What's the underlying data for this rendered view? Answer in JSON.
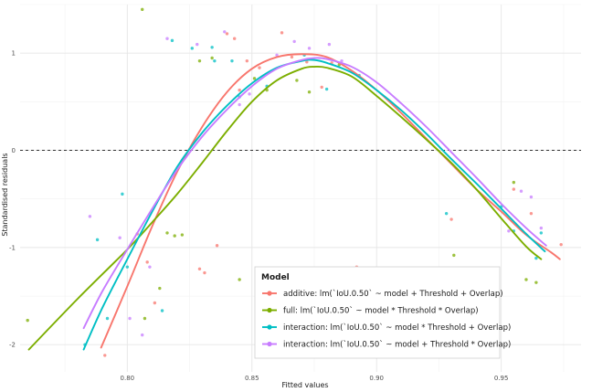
{
  "chart_data": {
    "type": "scatter",
    "xlabel": "Fitted values",
    "ylabel": "Standardised residuals",
    "xlim": [
      0.757,
      0.982
    ],
    "ylim": [
      -2.28,
      1.5
    ],
    "x_ticks": [
      0.8,
      0.85,
      0.9,
      0.95
    ],
    "x_tick_labels": [
      "0.80",
      "0.85",
      "0.90",
      "0.95"
    ],
    "y_ticks": [
      1,
      0,
      -1,
      -2
    ],
    "y_tick_labels": [
      "1",
      "0",
      "-1",
      "-2"
    ],
    "x_minor_ticks": [
      0.775,
      0.825,
      0.875,
      0.925,
      0.975
    ],
    "y_minor_ticks": [
      1.5,
      0.5,
      -0.5,
      -1.5
    ],
    "reference_line": 0,
    "grid": true,
    "legend": {
      "title": "Model",
      "position": "bottom-center"
    },
    "series": [
      {
        "name": "additive: lm(`IoU.0.50` ~ model + Threshold + Overlap)",
        "color": "#F8766D",
        "curve": [
          [
            0.7895,
            -2.03
          ],
          [
            0.8,
            -1.4
          ],
          [
            0.81,
            -0.78
          ],
          [
            0.82,
            -0.22
          ],
          [
            0.83,
            0.24
          ],
          [
            0.84,
            0.6
          ],
          [
            0.85,
            0.84
          ],
          [
            0.86,
            0.96
          ],
          [
            0.87,
            0.99
          ],
          [
            0.88,
            0.96
          ],
          [
            0.89,
            0.82
          ],
          [
            0.9,
            0.62
          ],
          [
            0.91,
            0.38
          ],
          [
            0.92,
            0.12
          ],
          [
            0.93,
            -0.14
          ],
          [
            0.94,
            -0.4
          ],
          [
            0.95,
            -0.63
          ],
          [
            0.96,
            -0.87
          ],
          [
            0.97,
            -1.05
          ],
          [
            0.9735,
            -1.12
          ]
        ],
        "points": [
          [
            0.791,
            -2.11
          ],
          [
            0.804,
            -0.86
          ],
          [
            0.808,
            -1.15
          ],
          [
            0.811,
            -1.57
          ],
          [
            0.829,
            -1.22
          ],
          [
            0.831,
            -1.26
          ],
          [
            0.836,
            -0.98
          ],
          [
            0.84,
            1.2
          ],
          [
            0.843,
            1.15
          ],
          [
            0.845,
            0.62
          ],
          [
            0.848,
            0.92
          ],
          [
            0.853,
            0.85
          ],
          [
            0.862,
            1.21
          ],
          [
            0.866,
            0.96
          ],
          [
            0.872,
            0.91
          ],
          [
            0.878,
            0.65
          ],
          [
            0.882,
            0.9
          ],
          [
            0.892,
            -1.2
          ],
          [
            0.93,
            -0.71
          ],
          [
            0.955,
            -0.4
          ],
          [
            0.962,
            -0.65
          ],
          [
            0.974,
            -0.97
          ]
        ]
      },
      {
        "name": "full: lm(`IoU.0.50` ~ model * Threshold * Overlap)",
        "color": "#7CAE00",
        "curve": [
          [
            0.7605,
            -2.05
          ],
          [
            0.78,
            -1.53
          ],
          [
            0.8,
            -1.02
          ],
          [
            0.81,
            -0.74
          ],
          [
            0.82,
            -0.45
          ],
          [
            0.83,
            -0.13
          ],
          [
            0.84,
            0.2
          ],
          [
            0.85,
            0.5
          ],
          [
            0.86,
            0.72
          ],
          [
            0.87,
            0.84
          ],
          [
            0.875,
            0.86
          ],
          [
            0.88,
            0.85
          ],
          [
            0.89,
            0.76
          ],
          [
            0.9,
            0.56
          ],
          [
            0.91,
            0.34
          ],
          [
            0.92,
            0.11
          ],
          [
            0.93,
            -0.13
          ],
          [
            0.94,
            -0.4
          ],
          [
            0.95,
            -0.7
          ],
          [
            0.96,
            -0.99
          ],
          [
            0.966,
            -1.12
          ]
        ],
        "points": [
          [
            0.76,
            -1.75
          ],
          [
            0.806,
            1.45
          ],
          [
            0.807,
            -1.73
          ],
          [
            0.813,
            -1.42
          ],
          [
            0.816,
            -0.85
          ],
          [
            0.819,
            -0.88
          ],
          [
            0.822,
            -0.87
          ],
          [
            0.829,
            0.92
          ],
          [
            0.834,
            0.95
          ],
          [
            0.845,
            -1.33
          ],
          [
            0.851,
            0.74
          ],
          [
            0.856,
            0.62
          ],
          [
            0.868,
            0.72
          ],
          [
            0.873,
            0.6
          ],
          [
            0.885,
            0.88
          ],
          [
            0.931,
            -1.08
          ],
          [
            0.955,
            -0.33
          ],
          [
            0.96,
            -1.33
          ],
          [
            0.964,
            -1.36
          ]
        ]
      },
      {
        "name": "interaction: lm(`IoU.0.50` ~ model * Threshold + Overlap)",
        "color": "#00BFC4",
        "curve": [
          [
            0.7825,
            -2.05
          ],
          [
            0.79,
            -1.62
          ],
          [
            0.8,
            -1.12
          ],
          [
            0.81,
            -0.63
          ],
          [
            0.82,
            -0.17
          ],
          [
            0.83,
            0.18
          ],
          [
            0.84,
            0.46
          ],
          [
            0.85,
            0.69
          ],
          [
            0.86,
            0.85
          ],
          [
            0.87,
            0.92
          ],
          [
            0.875,
            0.93
          ],
          [
            0.88,
            0.9
          ],
          [
            0.89,
            0.8
          ],
          [
            0.9,
            0.62
          ],
          [
            0.91,
            0.41
          ],
          [
            0.92,
            0.17
          ],
          [
            0.93,
            -0.09
          ],
          [
            0.94,
            -0.34
          ],
          [
            0.95,
            -0.6
          ],
          [
            0.96,
            -0.86
          ],
          [
            0.9675,
            -1.04
          ]
        ],
        "points": [
          [
            0.783,
            -2.0
          ],
          [
            0.788,
            -0.92
          ],
          [
            0.792,
            -1.73
          ],
          [
            0.798,
            -0.45
          ],
          [
            0.8,
            -1.2
          ],
          [
            0.814,
            -1.65
          ],
          [
            0.818,
            1.13
          ],
          [
            0.826,
            1.05
          ],
          [
            0.834,
            1.06
          ],
          [
            0.835,
            0.92
          ],
          [
            0.842,
            0.92
          ],
          [
            0.845,
            0.55
          ],
          [
            0.856,
            0.66
          ],
          [
            0.871,
            0.98
          ],
          [
            0.88,
            0.63
          ],
          [
            0.893,
            0.77
          ],
          [
            0.928,
            -0.65
          ],
          [
            0.95,
            -0.58
          ],
          [
            0.955,
            -0.83
          ],
          [
            0.964,
            -1.11
          ],
          [
            0.966,
            -0.85
          ]
        ]
      },
      {
        "name": "interaction: lm(`IoU.0.50` ~ model + Threshold * Overlap)",
        "color": "#C77CFF",
        "curve": [
          [
            0.7825,
            -1.83
          ],
          [
            0.79,
            -1.45
          ],
          [
            0.8,
            -1.02
          ],
          [
            0.81,
            -0.6
          ],
          [
            0.82,
            -0.2
          ],
          [
            0.83,
            0.14
          ],
          [
            0.84,
            0.42
          ],
          [
            0.85,
            0.66
          ],
          [
            0.86,
            0.84
          ],
          [
            0.87,
            0.93
          ],
          [
            0.875,
            0.95
          ],
          [
            0.88,
            0.94
          ],
          [
            0.89,
            0.86
          ],
          [
            0.9,
            0.7
          ],
          [
            0.91,
            0.48
          ],
          [
            0.92,
            0.24
          ],
          [
            0.93,
            -0.02
          ],
          [
            0.94,
            -0.28
          ],
          [
            0.95,
            -0.55
          ],
          [
            0.96,
            -0.8
          ],
          [
            0.968,
            -0.98
          ]
        ],
        "points": [
          [
            0.785,
            -0.68
          ],
          [
            0.797,
            -0.9
          ],
          [
            0.801,
            -1.73
          ],
          [
            0.806,
            -1.9
          ],
          [
            0.809,
            -1.2
          ],
          [
            0.816,
            1.15
          ],
          [
            0.828,
            1.09
          ],
          [
            0.839,
            1.22
          ],
          [
            0.845,
            0.47
          ],
          [
            0.849,
            0.58
          ],
          [
            0.86,
            0.98
          ],
          [
            0.867,
            1.12
          ],
          [
            0.873,
            1.05
          ],
          [
            0.881,
            1.09
          ],
          [
            0.886,
            0.92
          ],
          [
            0.953,
            -0.83
          ],
          [
            0.958,
            -0.42
          ],
          [
            0.962,
            -0.48
          ],
          [
            0.966,
            -0.8
          ]
        ]
      }
    ]
  }
}
